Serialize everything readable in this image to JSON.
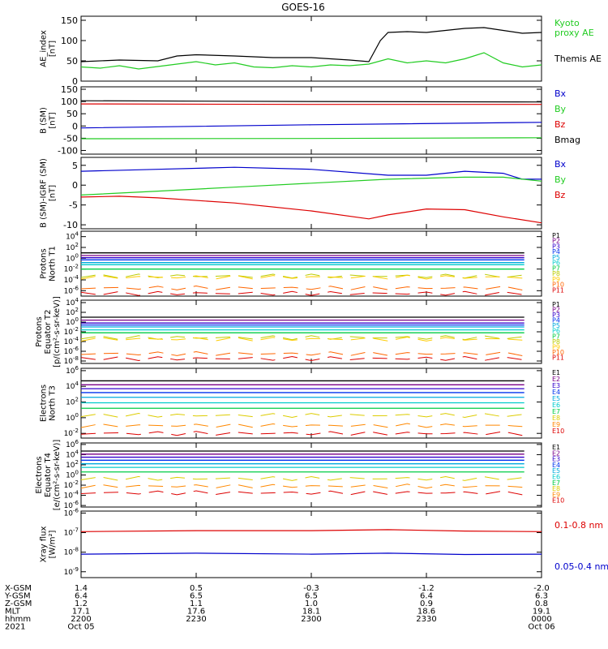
{
  "title": "GOES-16",
  "panels": [
    {
      "id": "ae",
      "ylabel": [
        "AE_index",
        "[nT]"
      ],
      "ticks": [
        "150",
        "100",
        "50",
        "0"
      ],
      "tick_vals": [
        150,
        100,
        50,
        0
      ],
      "ylim": [
        0,
        160
      ],
      "scale": "linear",
      "legend": [
        {
          "text": "Kyoto",
          "color": "#22cc22"
        },
        {
          "text": "proxy AE",
          "color": "#22cc22"
        },
        {
          "text": "Themis AE",
          "color": "#000000"
        }
      ]
    },
    {
      "id": "b",
      "ylabel": [
        "B (SM)",
        "[nT]"
      ],
      "ticks": [
        "150",
        "100",
        "50",
        "0",
        "-50",
        "-100"
      ],
      "tick_vals": [
        150,
        100,
        50,
        0,
        -50,
        -100
      ],
      "ylim": [
        -115,
        160
      ],
      "scale": "linear",
      "legend": [
        {
          "text": "Bx",
          "color": "#0000cc"
        },
        {
          "text": "By",
          "color": "#22cc22"
        },
        {
          "text": "Bz",
          "color": "#dd0000"
        },
        {
          "text": "Bmag",
          "color": "#000000"
        }
      ]
    },
    {
      "id": "bigrf",
      "ylabel": [
        "B (SM)-IGRF (SM)",
        "[nT]"
      ],
      "ticks": [
        "5",
        "0",
        "-5",
        "-10"
      ],
      "tick_vals": [
        5,
        0,
        -5,
        -10
      ],
      "ylim": [
        -11,
        7
      ],
      "scale": "linear",
      "legend": [
        {
          "text": "Bx",
          "color": "#0000cc"
        },
        {
          "text": "By",
          "color": "#22cc22"
        },
        {
          "text": "Bz",
          "color": "#dd0000"
        }
      ]
    },
    {
      "id": "pn",
      "ylabel": [
        "Protons",
        "North T1"
      ],
      "ticks": [
        "10^4",
        "10^2",
        "10^0",
        "10^-2",
        "10^-4",
        "10^-6"
      ],
      "tick_vals": [
        4,
        2,
        0,
        -2,
        -4,
        -6
      ],
      "ylim": [
        -7,
        5
      ],
      "scale": "log",
      "legend_channels": [
        "P1",
        "P2",
        "P3",
        "P4",
        "P5",
        "P6",
        "P7",
        "P8",
        "P9",
        "P10",
        "P11"
      ]
    },
    {
      "id": "pe",
      "ylabel": [
        "Protons",
        "Equator T2",
        "[p/(cm²-s-sr-keV)]"
      ],
      "ticks": [
        "10^4",
        "10^2",
        "10^0",
        "10^-2",
        "10^-4",
        "10^-6",
        "10^-8"
      ],
      "tick_vals": [
        4,
        2,
        0,
        -2,
        -4,
        -6,
        -8
      ],
      "ylim": [
        -8.5,
        4.5
      ],
      "scale": "log",
      "legend_channels": [
        "P1",
        "P2",
        "P3",
        "P4",
        "P5",
        "P6",
        "P7",
        "P8",
        "P9",
        "P10",
        "P11"
      ]
    },
    {
      "id": "en",
      "ylabel": [
        "Electrons",
        "North T3"
      ],
      "ticks": [
        "10^6",
        "10^4",
        "10^2",
        "10^0",
        "10^-2"
      ],
      "tick_vals": [
        6,
        4,
        2,
        0,
        -2
      ],
      "ylim": [
        -2.6,
        6.3
      ],
      "scale": "log",
      "legend_channels": [
        "E1",
        "E2",
        "E3",
        "E4",
        "E5",
        "E6",
        "E7",
        "E8",
        "E9",
        "E10"
      ]
    },
    {
      "id": "ee",
      "ylabel": [
        "Electrons",
        "Equator T4",
        "[e/(cm²-s-sr-keV)]"
      ],
      "ticks": [
        "10^6",
        "10^4",
        "10^2",
        "10^0",
        "10^-2",
        "10^-4",
        "10^-6"
      ],
      "tick_vals": [
        6,
        4,
        2,
        0,
        -2,
        -4,
        -6
      ],
      "ylim": [
        -6.3,
        6.3
      ],
      "scale": "log",
      "legend_channels": [
        "E1",
        "E2",
        "E3",
        "E4",
        "E5",
        "E6",
        "E7",
        "E8",
        "E9",
        "E10"
      ]
    },
    {
      "id": "xray",
      "ylabel": [
        "Xray flux",
        "[W/m²]"
      ],
      "ticks": [
        "10^-6",
        "10^-7",
        "10^-8",
        "10^-9"
      ],
      "tick_vals": [
        -6,
        -7,
        -8,
        -9
      ],
      "ylim": [
        -9.3,
        -5.9
      ],
      "scale": "log",
      "legend": [
        {
          "text": "0.1-0.8 nm",
          "color": "#dd0000"
        },
        {
          "text": "0.05-0.4 nm",
          "color": "#0000cc"
        }
      ]
    }
  ],
  "channel_colors_p": [
    "#000000",
    "#7a0088",
    "#3300cc",
    "#0033ee",
    "#00aadd",
    "#00cccc",
    "#00cc44",
    "#bbcc00",
    "#ffcc00",
    "#ff6600",
    "#dd0000"
  ],
  "channel_colors_e": [
    "#000000",
    "#7a0088",
    "#3300cc",
    "#0033ee",
    "#00aadd",
    "#00cccc",
    "#00cc44",
    "#ddcc00",
    "#ff8800",
    "#dd0000"
  ],
  "footer": {
    "row_labels": [
      "X-GSM",
      "Y-GSM",
      "Z-GSM",
      "MLT",
      "hhmm",
      "2021"
    ],
    "columns": [
      [
        "1.4",
        "6.4",
        "1.2",
        "17.1",
        "2200",
        "Oct 05"
      ],
      [
        "0.5",
        "6.5",
        "1.1",
        "17.6",
        "2230",
        ""
      ],
      [
        "-0.3",
        "6.5",
        "1.0",
        "18.1",
        "2300",
        ""
      ],
      [
        "-1.2",
        "6.4",
        "0.9",
        "18.6",
        "2330",
        ""
      ],
      [
        "-2.0",
        "6.3",
        "0.8",
        "19.1",
        "0000",
        "Oct 06"
      ]
    ]
  },
  "chart_data": {
    "type": "line",
    "title": "GOES-16",
    "x_range": [
      "2021-10-05 22:00",
      "2021-10-06 00:00"
    ],
    "x_ticks": [
      "2200",
      "2230",
      "2300",
      "2330",
      "0000"
    ],
    "series": [
      {
        "panel": "ae",
        "name": "Kyoto proxy AE",
        "color": "#22cc22",
        "x": [
          0,
          5,
          10,
          15,
          20,
          25,
          30,
          35,
          40,
          45,
          50,
          55,
          60,
          65,
          70,
          75,
          80,
          85,
          90,
          95,
          100,
          105,
          110,
          115,
          120
        ],
        "y": [
          35,
          32,
          38,
          30,
          36,
          42,
          48,
          40,
          45,
          35,
          33,
          38,
          35,
          40,
          38,
          42,
          55,
          45,
          50,
          45,
          55,
          70,
          45,
          35,
          40
        ]
      },
      {
        "panel": "ae",
        "name": "Themis AE",
        "color": "#000000",
        "x": [
          0,
          10,
          20,
          25,
          30,
          40,
          50,
          60,
          70,
          75,
          78,
          80,
          85,
          90,
          95,
          100,
          105,
          110,
          115,
          120
        ],
        "y": [
          48,
          52,
          50,
          62,
          65,
          62,
          58,
          58,
          52,
          48,
          100,
          120,
          122,
          120,
          125,
          130,
          132,
          125,
          118,
          120
        ]
      },
      {
        "panel": "b",
        "name": "Bmag",
        "color": "#000000",
        "x": [
          0,
          60,
          120
        ],
        "y": [
          103,
          100,
          98
        ]
      },
      {
        "panel": "b",
        "name": "Bz",
        "color": "#dd0000",
        "x": [
          0,
          60,
          120
        ],
        "y": [
          90,
          88,
          88
        ]
      },
      {
        "panel": "b",
        "name": "Bx",
        "color": "#0000cc",
        "x": [
          0,
          60,
          120
        ],
        "y": [
          -8,
          5,
          15
        ]
      },
      {
        "panel": "b",
        "name": "By",
        "color": "#22cc22",
        "x": [
          0,
          60,
          120
        ],
        "y": [
          -52,
          -51,
          -48
        ]
      },
      {
        "panel": "bigrf",
        "name": "Bx",
        "color": "#0000cc",
        "x": [
          0,
          20,
          40,
          60,
          80,
          90,
          100,
          110,
          115,
          120
        ],
        "y": [
          3.5,
          4.0,
          4.5,
          4.0,
          2.5,
          2.5,
          3.5,
          3.0,
          1.5,
          1.5
        ]
      },
      {
        "panel": "bigrf",
        "name": "By",
        "color": "#22cc22",
        "x": [
          0,
          20,
          40,
          60,
          80,
          100,
          110,
          120
        ],
        "y": [
          -2.5,
          -1.5,
          -0.5,
          0.5,
          1.5,
          2.0,
          2.0,
          1.0
        ]
      },
      {
        "panel": "bigrf",
        "name": "Bz",
        "color": "#dd0000",
        "x": [
          0,
          10,
          20,
          40,
          60,
          75,
          80,
          90,
          100,
          110,
          120
        ],
        "y": [
          -3,
          -2.8,
          -3.2,
          -4.5,
          -6.5,
          -8.5,
          -7.5,
          -6.0,
          -6.2,
          -8.0,
          -9.5
        ]
      },
      {
        "panel": "xray",
        "name": "0.1-0.8 nm",
        "color": "#dd0000",
        "x": [
          0,
          30,
          60,
          80,
          100,
          120
        ],
        "y": [
          -6.95,
          -6.9,
          -6.9,
          -6.85,
          -6.92,
          -6.95
        ]
      },
      {
        "panel": "xray",
        "name": "0.05-0.4 nm",
        "color": "#0000cc",
        "x": [
          0,
          30,
          60,
          80,
          100,
          120
        ],
        "y": [
          -8.1,
          -8.05,
          -8.1,
          -8.05,
          -8.12,
          -8.1
        ]
      }
    ],
    "flux_levels_log10": {
      "pn": [
        1.0,
        0.5,
        0.1,
        -0.3,
        -0.8,
        -1.2,
        -2.0,
        -3.3,
        -3.5,
        -5.5,
        -6.5
      ],
      "pe": [
        1.0,
        0.4,
        -0.2,
        -0.6,
        -1.0,
        -1.6,
        -2.2,
        -3.2,
        -3.5,
        -6.5,
        -7.5
      ],
      "en": [
        4.7,
        4.2,
        3.7,
        3.2,
        2.6,
        1.9,
        1.2,
        0.3,
        -1.0,
        -2.0
      ],
      "ee": [
        4.7,
        4.1,
        3.5,
        2.9,
        2.2,
        1.5,
        0.6,
        -0.7,
        -2.2,
        -3.5
      ]
    }
  }
}
